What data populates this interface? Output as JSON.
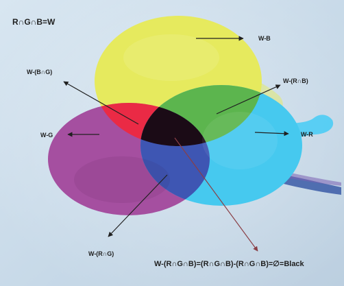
{
  "labels": {
    "top_equation": "R∩G∩B=W",
    "w_minus_b": "W-B",
    "w_minus_b_cap_g": "W-(B∩G)",
    "w_minus_r_cap_b": "W-(R∩B)",
    "w_minus_g": "W-G",
    "w_minus_r": "W-R",
    "w_minus_r_cap_g": "W-(R∩G)",
    "bottom_equation": "W-(R∩G∩B)=(R∩G∩B)-(R∩G∩B)=∅=Black"
  },
  "colors": {
    "background": "#cfe0ee",
    "yellow": "#e6ea5e",
    "magenta": "#a54fa0",
    "cyan": "#46c9ef",
    "red": "#ea2a45",
    "green": "#5cb54e",
    "blue": "#3e56b3",
    "black_center": "#1b0b16",
    "text": "#1f1f1f"
  }
}
